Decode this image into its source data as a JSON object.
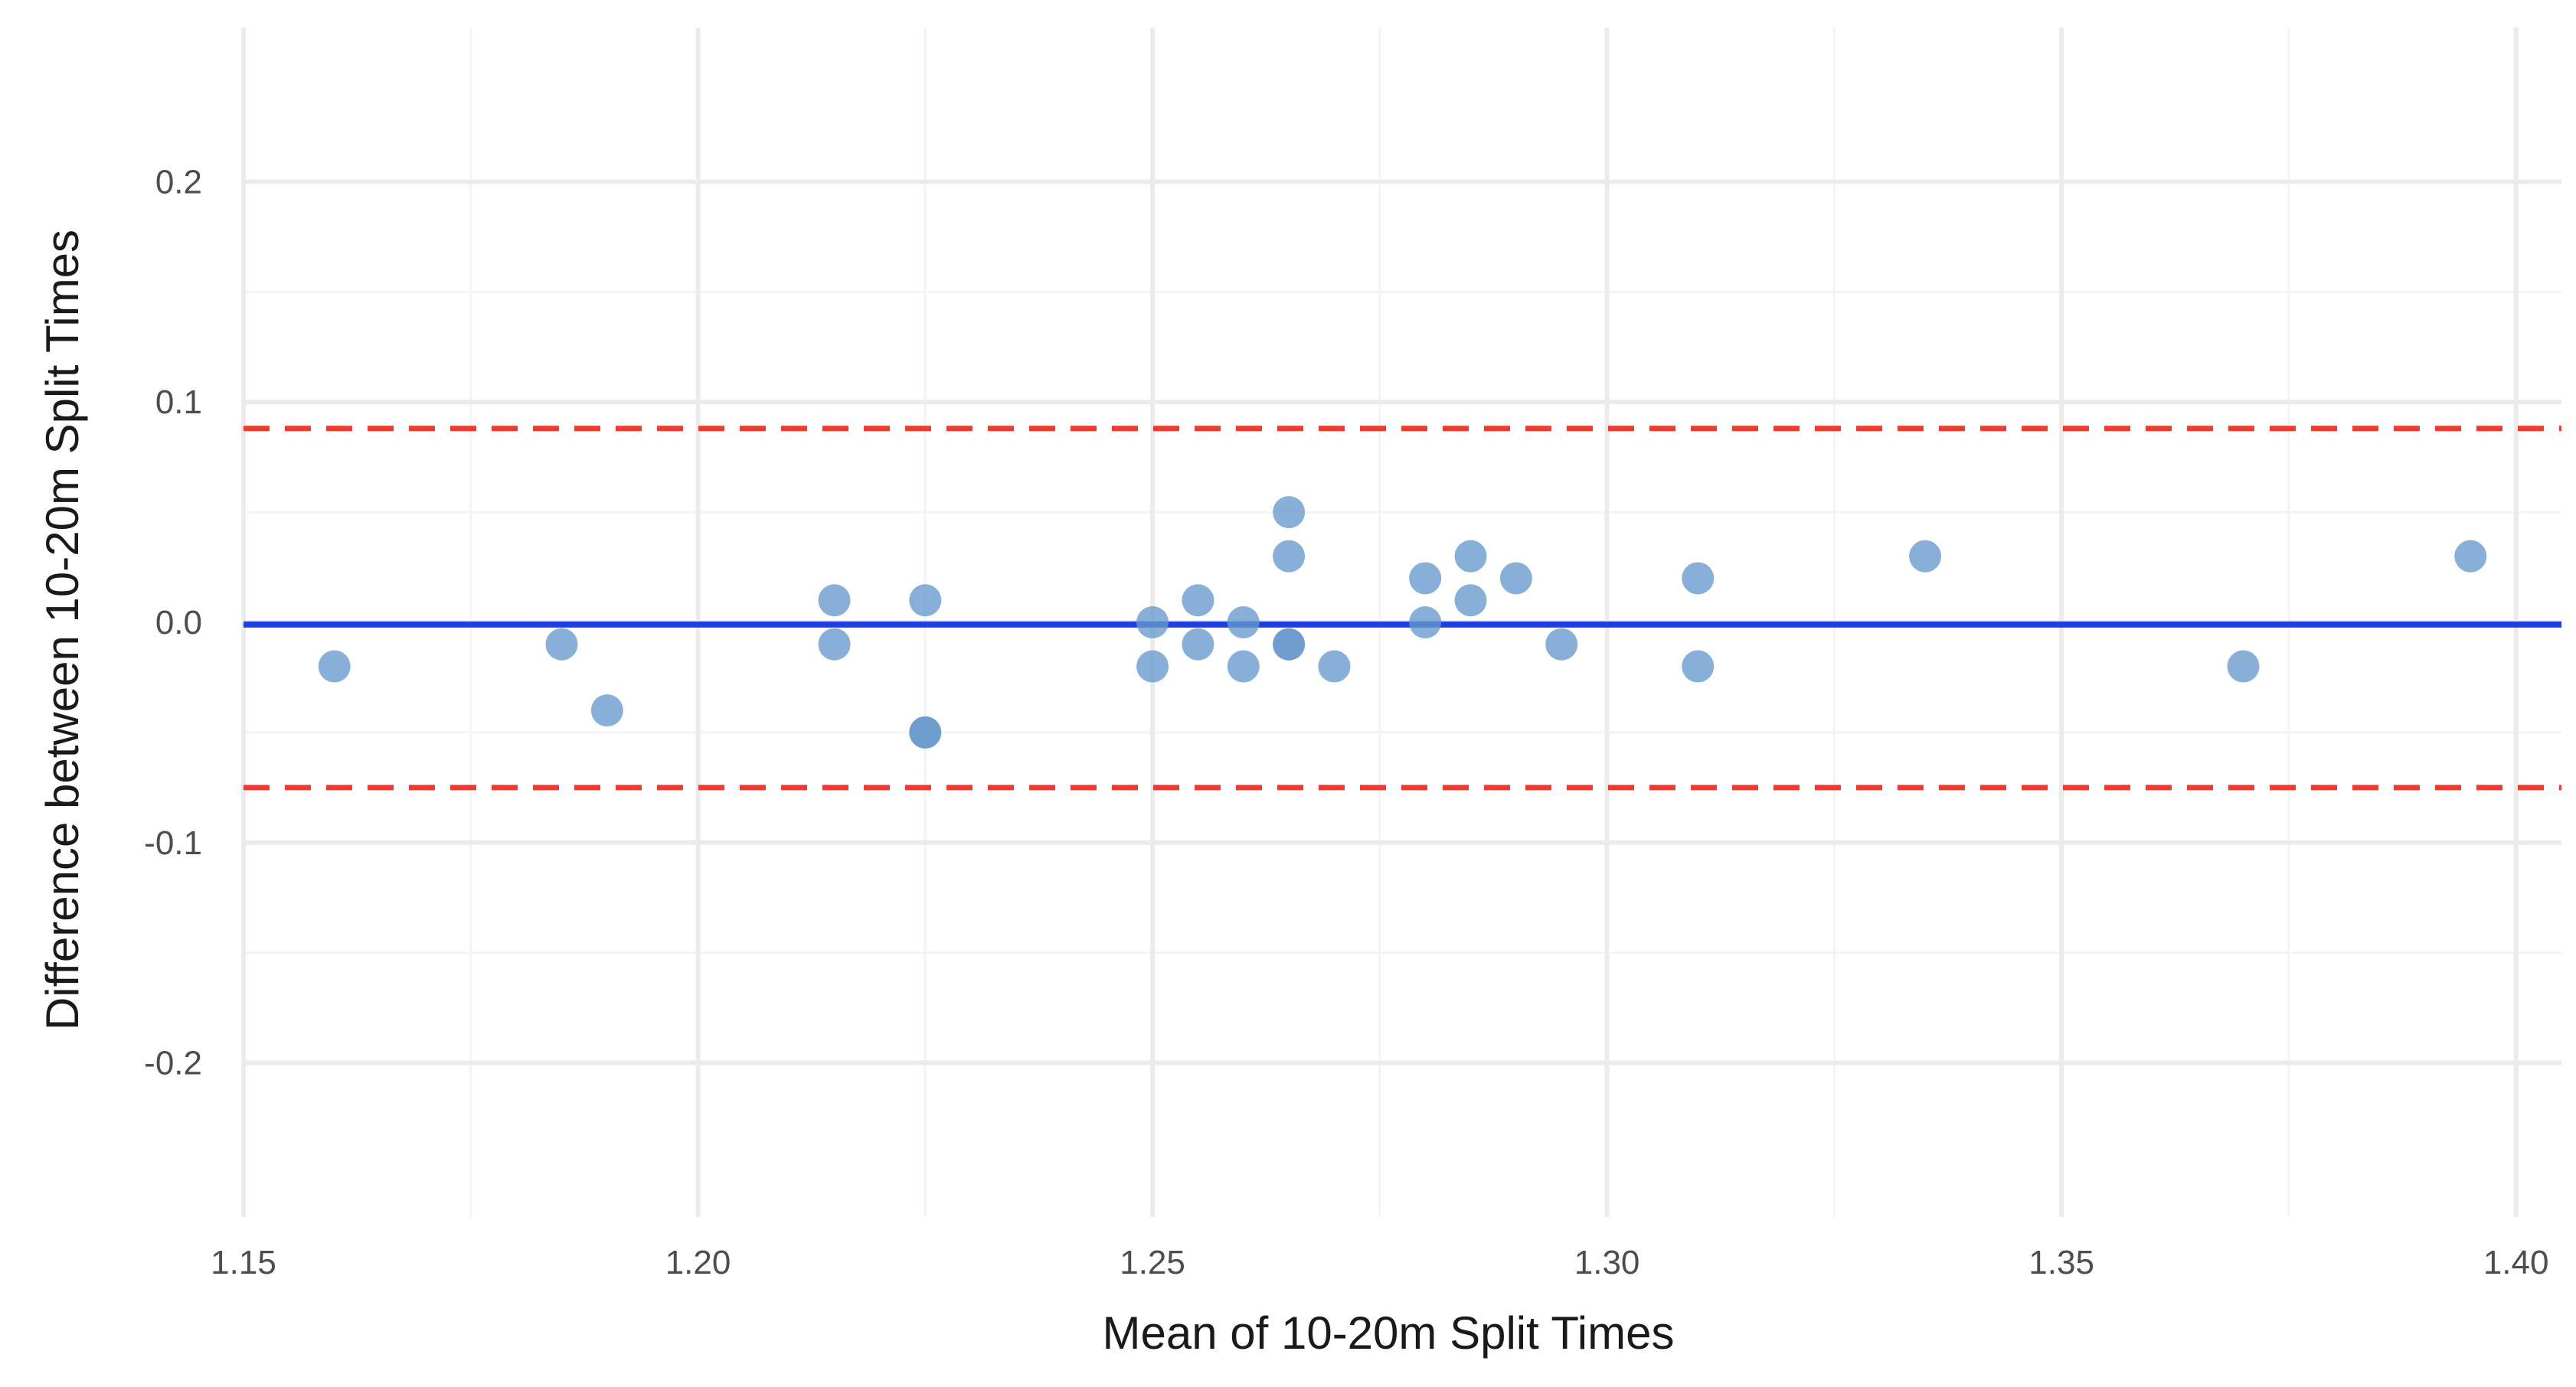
{
  "chart_data": {
    "type": "scatter",
    "title": "",
    "xlabel": "Mean of 10-20m Split Times",
    "ylabel": "Difference between 10-20m Split Times",
    "xlim": [
      1.15,
      1.405
    ],
    "ylim": [
      -0.27,
      0.27
    ],
    "x_ticks": [
      1.15,
      1.2,
      1.25,
      1.3,
      1.35,
      1.4
    ],
    "x_tick_labels": [
      "1.15",
      "1.20",
      "1.25",
      "1.30",
      "1.35",
      "1.40"
    ],
    "y_ticks": [
      -0.2,
      -0.1,
      0.0,
      0.1,
      0.2
    ],
    "y_tick_labels": [
      "-0.2",
      "-0.1",
      "0.0",
      "0.1",
      "0.2"
    ],
    "grid": true,
    "legend": "none",
    "points_color": "#6699cc",
    "points": [
      {
        "x": 1.16,
        "y": -0.02
      },
      {
        "x": 1.185,
        "y": -0.01
      },
      {
        "x": 1.19,
        "y": -0.04
      },
      {
        "x": 1.215,
        "y": 0.01
      },
      {
        "x": 1.215,
        "y": -0.01
      },
      {
        "x": 1.225,
        "y": 0.01
      },
      {
        "x": 1.225,
        "y": -0.05
      },
      {
        "x": 1.225,
        "y": -0.05
      },
      {
        "x": 1.25,
        "y": 0.0
      },
      {
        "x": 1.25,
        "y": -0.02
      },
      {
        "x": 1.255,
        "y": 0.01
      },
      {
        "x": 1.255,
        "y": -0.01
      },
      {
        "x": 1.26,
        "y": 0.0
      },
      {
        "x": 1.26,
        "y": -0.02
      },
      {
        "x": 1.265,
        "y": 0.05
      },
      {
        "x": 1.265,
        "y": 0.03
      },
      {
        "x": 1.265,
        "y": -0.01
      },
      {
        "x": 1.265,
        "y": -0.01
      },
      {
        "x": 1.27,
        "y": -0.02
      },
      {
        "x": 1.28,
        "y": 0.02
      },
      {
        "x": 1.28,
        "y": 0.0
      },
      {
        "x": 1.285,
        "y": 0.03
      },
      {
        "x": 1.285,
        "y": 0.01
      },
      {
        "x": 1.29,
        "y": 0.02
      },
      {
        "x": 1.295,
        "y": -0.01
      },
      {
        "x": 1.31,
        "y": 0.02
      },
      {
        "x": 1.31,
        "y": -0.02
      },
      {
        "x": 1.335,
        "y": 0.03
      },
      {
        "x": 1.37,
        "y": -0.02
      },
      {
        "x": 1.395,
        "y": 0.03
      }
    ],
    "reference_lines": [
      {
        "name": "mean-difference",
        "y": -0.001,
        "color": "#1f3fe0",
        "style": "solid"
      },
      {
        "name": "upper-limit-of-agreement",
        "y": 0.088,
        "color": "#f03a2e",
        "style": "dashed"
      },
      {
        "name": "lower-limit-of-agreement",
        "y": -0.075,
        "color": "#f03a2e",
        "style": "dashed"
      }
    ]
  }
}
